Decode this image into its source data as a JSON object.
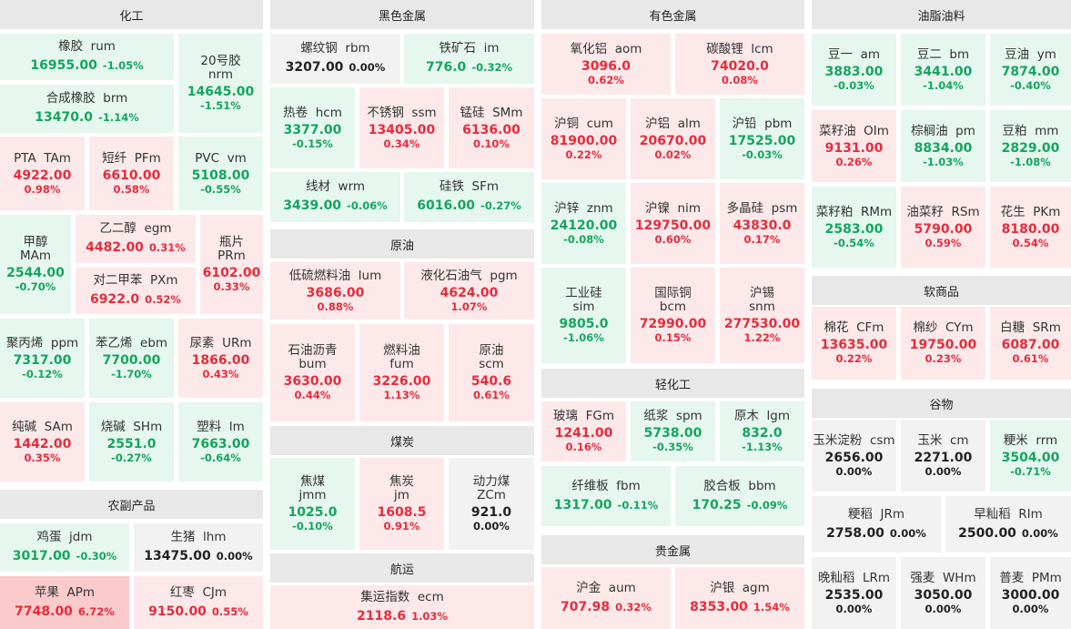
{
  "sections": {
    "chemical": "化工",
    "ferrous": "黑色金属",
    "nonferrous": "有色金属",
    "oils": "油脂油料",
    "agri": "农副产品",
    "crude": "原油",
    "coal": "煤炭",
    "shipping": "航运",
    "light": "轻化工",
    "precious": "贵金属",
    "soft": "软商品",
    "grain": "谷物"
  },
  "items": {
    "rum": {
      "name": "橡胶  rum",
      "price": "16955.00",
      "pct": "-1.05%"
    },
    "nrm": {
      "name": "20号胶",
      "code": "nrm",
      "price": "14645.00",
      "pct": "-1.51%"
    },
    "brm": {
      "name": "合成橡胶  brm",
      "price": "13470.0",
      "pct": "-1.14%"
    },
    "tam": {
      "name": "PTA  TAm",
      "price": "4922.00",
      "pct": "0.98%"
    },
    "pfm": {
      "name": "短纤  PFm",
      "price": "6610.00",
      "pct": "0.58%"
    },
    "vm": {
      "name": "PVC  vm",
      "price": "5108.00",
      "pct": "-0.55%"
    },
    "mam": {
      "name": "甲醇",
      "code": "MAm",
      "price": "2544.00",
      "pct": "-0.70%"
    },
    "egm": {
      "name": "乙二醇  egm",
      "price": "4482.00",
      "pct": "0.31%"
    },
    "prm": {
      "name": "瓶片",
      "code": "PRm",
      "price": "6102.00",
      "pct": "0.33%"
    },
    "pxm": {
      "name": "对二甲苯  PXm",
      "price": "6922.0",
      "pct": "0.52%"
    },
    "ppm": {
      "name": "聚丙烯  ppm",
      "price": "7317.00",
      "pct": "-0.12%"
    },
    "ebm": {
      "name": "苯乙烯  ebm",
      "price": "7700.00",
      "pct": "-1.70%"
    },
    "urm": {
      "name": "尿素  URm",
      "price": "1866.00",
      "pct": "0.43%"
    },
    "sam": {
      "name": "纯碱  SAm",
      "price": "1442.00",
      "pct": "0.35%"
    },
    "shm": {
      "name": "烧碱  SHm",
      "price": "2551.0",
      "pct": "-0.27%"
    },
    "lm": {
      "name": "塑料  lm",
      "price": "7663.00",
      "pct": "-0.64%"
    },
    "jdm": {
      "name": "鸡蛋  jdm",
      "price": "3017.00",
      "pct": "-0.30%"
    },
    "lhm": {
      "name": "生猪  lhm",
      "price": "13475.00",
      "pct": "0.00%"
    },
    "apm": {
      "name": "苹果  APm",
      "price": "7748.00",
      "pct": "6.72%"
    },
    "cjm": {
      "name": "红枣  CJm",
      "price": "9150.00",
      "pct": "0.55%"
    },
    "rbm": {
      "name": "螺纹钢  rbm",
      "price": "3207.00",
      "pct": "0.00%"
    },
    "im": {
      "name": "铁矿石  im",
      "price": "776.0",
      "pct": "-0.32%"
    },
    "hcm": {
      "name": "热卷  hcm",
      "price": "3377.00",
      "pct": "-0.15%"
    },
    "ssm": {
      "name": "不锈钢  ssm",
      "price": "13405.00",
      "pct": "0.34%"
    },
    "smm": {
      "name": "锰硅  SMm",
      "price": "6136.00",
      "pct": "0.10%"
    },
    "wrm": {
      "name": "线材  wrm",
      "price": "3439.00",
      "pct": "-0.06%"
    },
    "sfm": {
      "name": "硅铁  SFm",
      "price": "6016.00",
      "pct": "-0.27%"
    },
    "lum": {
      "name": "低硫燃料油  lum",
      "price": "3686.00",
      "pct": "0.88%"
    },
    "pgm": {
      "name": "液化石油气  pgm",
      "price": "4624.00",
      "pct": "1.07%"
    },
    "bum": {
      "name": "石油沥青",
      "code": "bum",
      "price": "3630.00",
      "pct": "0.44%"
    },
    "fum": {
      "name": "燃料油",
      "code": "fum",
      "price": "3226.00",
      "pct": "1.13%"
    },
    "scm": {
      "name": "原油",
      "code": "scm",
      "price": "540.6",
      "pct": "0.61%"
    },
    "jmm": {
      "name": "焦煤",
      "code": "jmm",
      "price": "1025.0",
      "pct": "-0.10%"
    },
    "jm": {
      "name": "焦炭",
      "code": "jm",
      "price": "1608.5",
      "pct": "0.91%"
    },
    "zcm": {
      "name": "动力煤",
      "code": "ZCm",
      "price": "921.0",
      "pct": "0.00%"
    },
    "ecm": {
      "name": "集运指数  ecm",
      "price": "2118.6",
      "pct": "1.03%"
    },
    "aom": {
      "name": "氧化铝  aom",
      "price": "3096.0",
      "pct": "0.62%"
    },
    "lcm": {
      "name": "碳酸锂  lcm",
      "price": "74020.0",
      "pct": "0.08%"
    },
    "cum": {
      "name": "沪铜  cum",
      "price": "81900.00",
      "pct": "0.22%"
    },
    "alm": {
      "name": "沪铝  alm",
      "price": "20670.00",
      "pct": "0.02%"
    },
    "pbm": {
      "name": "沪铅  pbm",
      "price": "17525.00",
      "pct": "-0.03%"
    },
    "znm": {
      "name": "沪锌  znm",
      "price": "24120.00",
      "pct": "-0.08%"
    },
    "nim": {
      "name": "沪镍  nim",
      "price": "129750.00",
      "pct": "0.60%"
    },
    "psm": {
      "name": "多晶硅  psm",
      "price": "43830.0",
      "pct": "0.17%"
    },
    "sim": {
      "name": "工业硅",
      "code": "sim",
      "price": "9805.0",
      "pct": "-1.06%"
    },
    "bcm": {
      "name": "国际铜",
      "code": "bcm",
      "price": "72990.00",
      "pct": "0.15%"
    },
    "snm": {
      "name": "沪锡",
      "code": "snm",
      "price": "277530.00",
      "pct": "1.22%"
    },
    "fgm": {
      "name": "玻璃  FGm",
      "price": "1241.00",
      "pct": "0.16%"
    },
    "spm": {
      "name": "纸浆  spm",
      "price": "5738.00",
      "pct": "-0.35%"
    },
    "lgm": {
      "name": "原木  lgm",
      "price": "832.0",
      "pct": "-1.13%"
    },
    "fbm": {
      "name": "纤维板  fbm",
      "price": "1317.00",
      "pct": "-0.11%"
    },
    "bbm": {
      "name": "胶合板  bbm",
      "price": "170.25",
      "pct": "-0.09%"
    },
    "aum": {
      "name": "沪金  aum",
      "price": "707.98",
      "pct": "0.32%"
    },
    "agm": {
      "name": "沪银  agm",
      "price": "8353.00",
      "pct": "1.54%"
    },
    "am": {
      "name": "豆一  am",
      "price": "3883.00",
      "pct": "-0.03%"
    },
    "bm": {
      "name": "豆二  bm",
      "price": "3441.00",
      "pct": "-1.04%"
    },
    "ym": {
      "name": "豆油  ym",
      "price": "7874.00",
      "pct": "-0.40%"
    },
    "olm": {
      "name": "菜籽油  OIm",
      "price": "9131.00",
      "pct": "0.26%"
    },
    "pm": {
      "name": "棕榈油  pm",
      "price": "8834.00",
      "pct": "-1.03%"
    },
    "mm": {
      "name": "豆粕  mm",
      "price": "2829.00",
      "pct": "-1.08%"
    },
    "rmm": {
      "name": "菜籽粕  RMm",
      "price": "2583.00",
      "pct": "-0.54%"
    },
    "rsm": {
      "name": "油菜籽  RSm",
      "price": "5790.00",
      "pct": "0.59%"
    },
    "pkm": {
      "name": "花生  PKm",
      "price": "8180.00",
      "pct": "0.54%"
    },
    "cfm": {
      "name": "棉花  CFm",
      "price": "13635.00",
      "pct": "0.22%"
    },
    "cym": {
      "name": "棉纱  CYm",
      "price": "19750.00",
      "pct": "0.23%"
    },
    "srm": {
      "name": "白糖  SRm",
      "price": "6087.00",
      "pct": "0.61%"
    },
    "csm": {
      "name": "玉米淀粉  csm",
      "price": "2656.00",
      "pct": "0.00%"
    },
    "cm": {
      "name": "玉米  cm",
      "price": "2271.00",
      "pct": "0.00%"
    },
    "rrm": {
      "name": "粳米  rrm",
      "price": "3504.00",
      "pct": "-0.71%"
    },
    "jrm": {
      "name": "粳稻  JRm",
      "price": "2758.00",
      "pct": "0.00%"
    },
    "rim": {
      "name": "早籼稻  RIm",
      "price": "2500.00",
      "pct": "0.00%"
    },
    "lrm": {
      "name": "晚籼稻  LRm",
      "price": "2535.00",
      "pct": "0.00%"
    },
    "whm": {
      "name": "强麦  WHm",
      "price": "3050.00",
      "pct": "0.00%"
    },
    "pmm": {
      "name": "普麦  PMm",
      "price": "3000.00",
      "pct": "0.00%"
    }
  }
}
